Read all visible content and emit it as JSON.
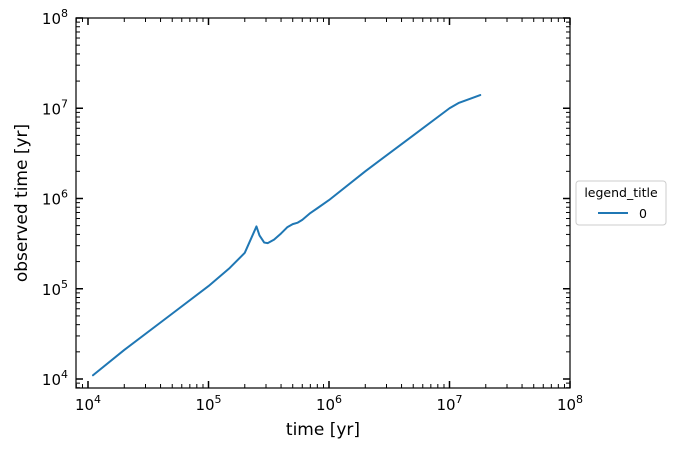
{
  "chart_data": {
    "type": "line",
    "xlabel": "time [yr]",
    "ylabel": "observed time [yr]",
    "xscale": "log",
    "yscale": "log",
    "xlim": [
      10000,
      100000000
    ],
    "ylim": [
      10000,
      100000000
    ],
    "xticks": [
      {
        "base": "10",
        "exp": "4"
      },
      {
        "base": "10",
        "exp": "5"
      },
      {
        "base": "10",
        "exp": "6"
      },
      {
        "base": "10",
        "exp": "7"
      },
      {
        "base": "10",
        "exp": "8"
      }
    ],
    "yticks": [
      {
        "base": "10",
        "exp": "4"
      },
      {
        "base": "10",
        "exp": "5"
      },
      {
        "base": "10",
        "exp": "6"
      },
      {
        "base": "10",
        "exp": "7"
      },
      {
        "base": "10",
        "exp": "8"
      }
    ],
    "grid": false,
    "legend": {
      "title": "legend_title",
      "placement": "outside-right"
    },
    "series": [
      {
        "name": "0",
        "color": "#1f77b4",
        "x": [
          11000,
          20000,
          50000,
          100000,
          150000,
          200000,
          250000,
          265000,
          290000,
          310000,
          350000,
          400000,
          450000,
          500000,
          550000,
          600000,
          700000,
          800000,
          1000000,
          2000000,
          5000000,
          10000000,
          12000000,
          15000000,
          18000000
        ],
        "y": [
          11000,
          21000,
          53000,
          107000,
          170000,
          250000,
          490000,
          390000,
          325000,
          320000,
          350000,
          410000,
          480000,
          520000,
          540000,
          580000,
          690000,
          780000,
          960000,
          2000000,
          5000000,
          10000000,
          11500000,
          12800000,
          14000000
        ]
      }
    ]
  }
}
